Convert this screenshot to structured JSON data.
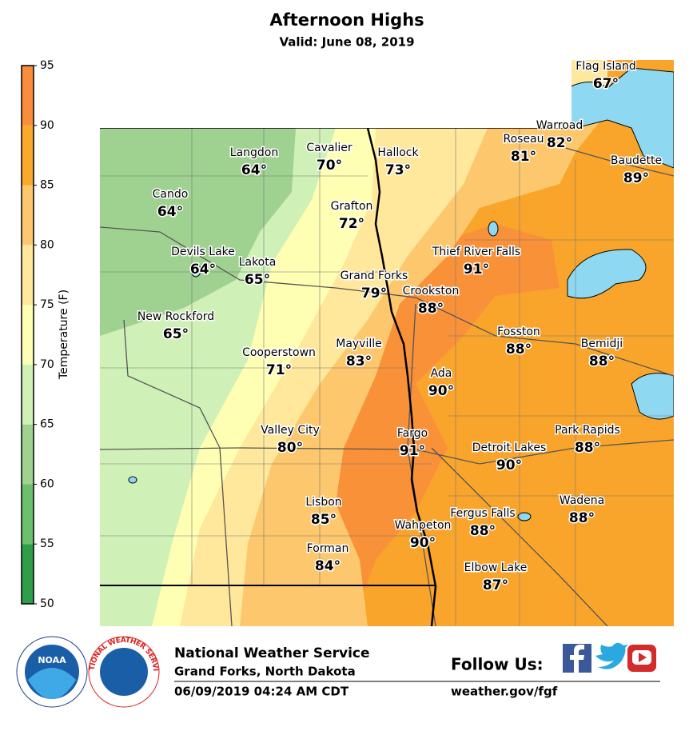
{
  "header": {
    "title": "Afternoon Highs",
    "subtitle": "Valid: June 08, 2019"
  },
  "colorbar": {
    "label": "Temperature (F)",
    "ticks": [
      50,
      55,
      60,
      65,
      70,
      75,
      80,
      85,
      90,
      95
    ],
    "colors": [
      "#2f9e4a",
      "#6cbf6c",
      "#9fd290",
      "#cff0b7",
      "#ffffb3",
      "#ffe79c",
      "#fdc86d",
      "#fba82b",
      "#f98d3c"
    ]
  },
  "cities": [
    {
      "name": "Flag Island",
      "temp": "67°"
    },
    {
      "name": "Warroad",
      "temp": "82°"
    },
    {
      "name": "Roseau",
      "temp": "81°"
    },
    {
      "name": "Baudette",
      "temp": "89°"
    },
    {
      "name": "Langdon",
      "temp": "64°"
    },
    {
      "name": "Cavalier",
      "temp": "70°"
    },
    {
      "name": "Hallock",
      "temp": "73°"
    },
    {
      "name": "Cando",
      "temp": "64°"
    },
    {
      "name": "Grafton",
      "temp": "72°"
    },
    {
      "name": "Devils Lake",
      "temp": "64°"
    },
    {
      "name": "Lakota",
      "temp": "65°"
    },
    {
      "name": "Thief River Falls",
      "temp": "91°"
    },
    {
      "name": "Grand Forks",
      "temp": "79°"
    },
    {
      "name": "Crookston",
      "temp": "88°"
    },
    {
      "name": "New Rockford",
      "temp": "65°"
    },
    {
      "name": "Fosston",
      "temp": "88°"
    },
    {
      "name": "Bemidji",
      "temp": "88°"
    },
    {
      "name": "Cooperstown",
      "temp": "71°"
    },
    {
      "name": "Mayville",
      "temp": "83°"
    },
    {
      "name": "Ada",
      "temp": "90°"
    },
    {
      "name": "Valley City",
      "temp": "80°"
    },
    {
      "name": "Fargo",
      "temp": "91°"
    },
    {
      "name": "Detroit Lakes",
      "temp": "90°"
    },
    {
      "name": "Park Rapids",
      "temp": "88°"
    },
    {
      "name": "Lisbon",
      "temp": "85°"
    },
    {
      "name": "Fergus Falls",
      "temp": "88°"
    },
    {
      "name": "Wadena",
      "temp": "88°"
    },
    {
      "name": "Wahpeton",
      "temp": "90°"
    },
    {
      "name": "Forman",
      "temp": "84°"
    },
    {
      "name": "Elbow Lake",
      "temp": "87°"
    }
  ],
  "footer": {
    "agency": "National Weather Service",
    "office": "Grand Forks, North Dakota",
    "issued": "06/09/2019 04:24 AM CDT",
    "follow": "Follow Us:",
    "website": "weather.gov/fgf",
    "noaa_logo": "NOAA",
    "nws_logo": "NATIONAL WEATHER SERVICE"
  }
}
